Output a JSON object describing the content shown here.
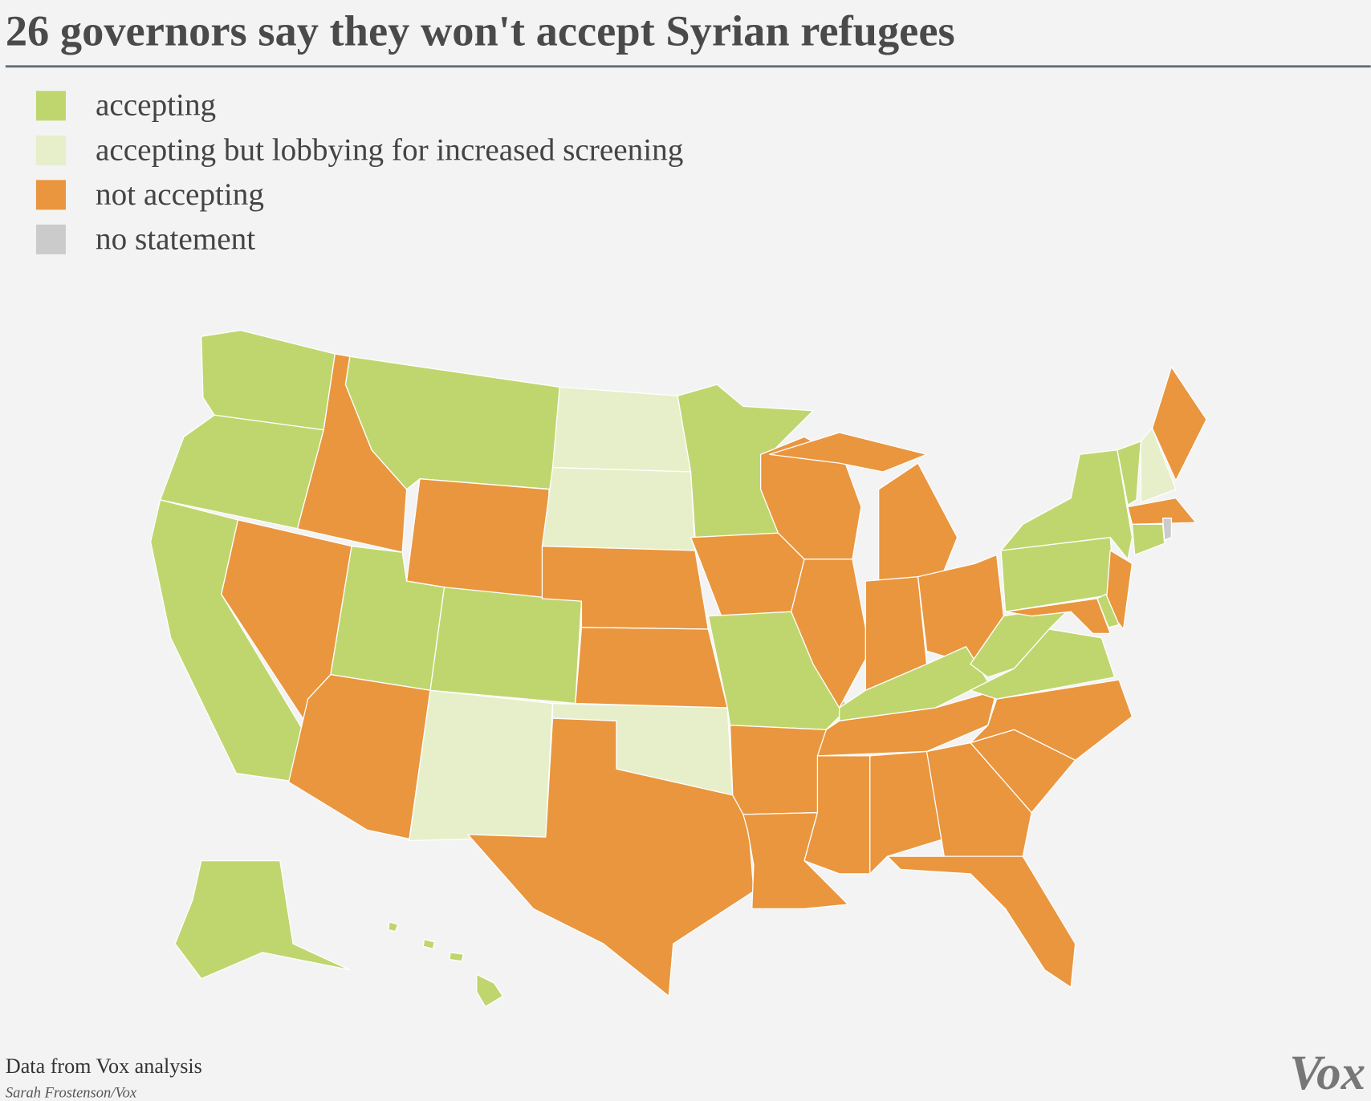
{
  "title": "26 governors say they won't accept Syrian refugees",
  "legend": [
    {
      "label": "accepting",
      "color": "#bfd66f"
    },
    {
      "label": "accepting but lobbying for increased screening",
      "color": "#e6efc9"
    },
    {
      "label": "not accepting",
      "color": "#e9963f"
    },
    {
      "label": "no statement",
      "color": "#cbcbcb"
    }
  ],
  "source": "Data from Vox analysis",
  "credit": "Sarah Frostenson/Vox",
  "logo": "Vox"
}
